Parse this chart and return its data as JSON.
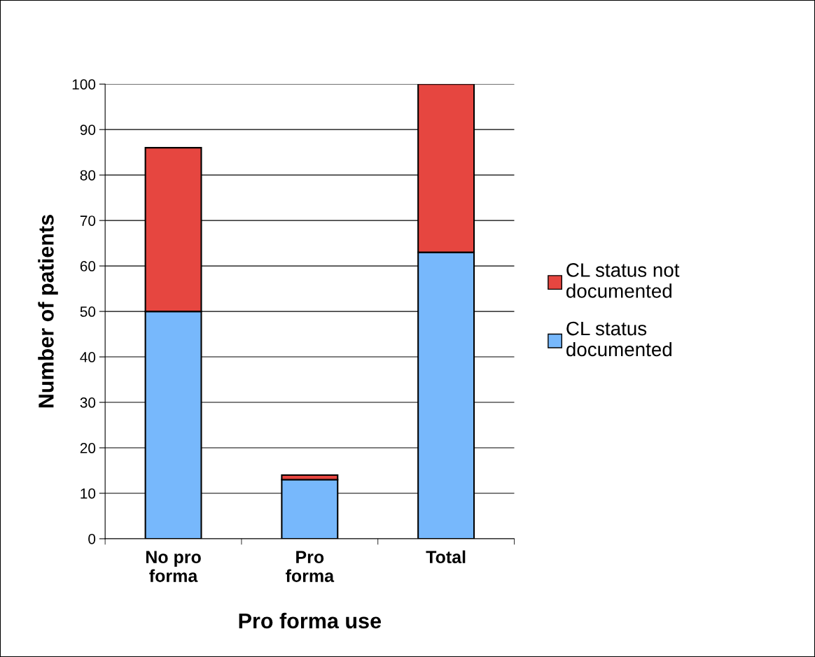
{
  "chart_data": {
    "type": "bar",
    "stacked": true,
    "xlabel": "Pro forma use",
    "ylabel": "Number of patients",
    "categories": [
      "No pro forma",
      "Pro forma",
      "Total"
    ],
    "series": [
      {
        "name": "CL status documented",
        "color": "#77b8fc",
        "values": [
          50,
          13,
          63
        ]
      },
      {
        "name": "CL status not documented",
        "color": "#e64640",
        "values": [
          36,
          1,
          37
        ]
      }
    ],
    "ylim": [
      0,
      100
    ],
    "yticks": [
      0,
      10,
      20,
      30,
      40,
      50,
      60,
      70,
      80,
      90,
      100
    ],
    "grid": "y",
    "legend": "right"
  }
}
